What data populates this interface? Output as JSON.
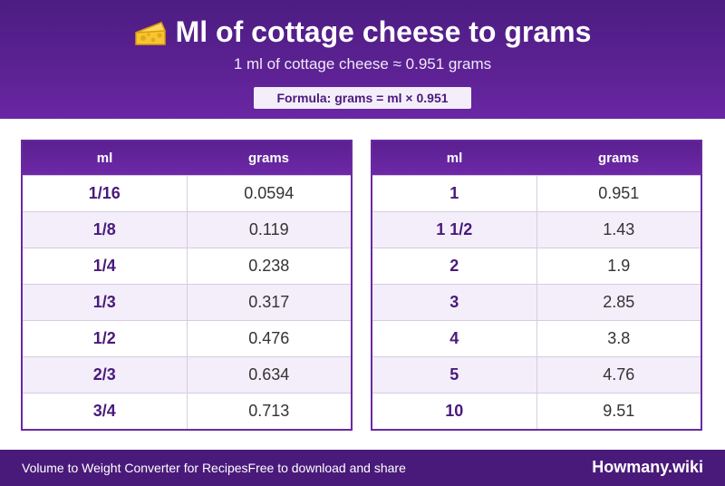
{
  "header": {
    "title": "Ml of cottage cheese to grams",
    "subtitle": "1 ml of cottage cheese ≈ 0.951 grams",
    "formula": "Formula: grams = ml × 0.951"
  },
  "tables": [
    {
      "headers": [
        "ml",
        "grams"
      ],
      "rows": [
        [
          "1/16",
          "0.0594"
        ],
        [
          "1/8",
          "0.119"
        ],
        [
          "1/4",
          "0.238"
        ],
        [
          "1/3",
          "0.317"
        ],
        [
          "1/2",
          "0.476"
        ],
        [
          "2/3",
          "0.634"
        ],
        [
          "3/4",
          "0.713"
        ]
      ]
    },
    {
      "headers": [
        "ml",
        "grams"
      ],
      "rows": [
        [
          "1",
          "0.951"
        ],
        [
          "1 1/2",
          "1.43"
        ],
        [
          "2",
          "1.9"
        ],
        [
          "3",
          "2.85"
        ],
        [
          "4",
          "3.8"
        ],
        [
          "5",
          "4.76"
        ],
        [
          "10",
          "9.51"
        ]
      ]
    }
  ],
  "footer": {
    "text": "Volume to Weight Converter for RecipesFree to download and share",
    "brand": "Howmany.wiki"
  }
}
